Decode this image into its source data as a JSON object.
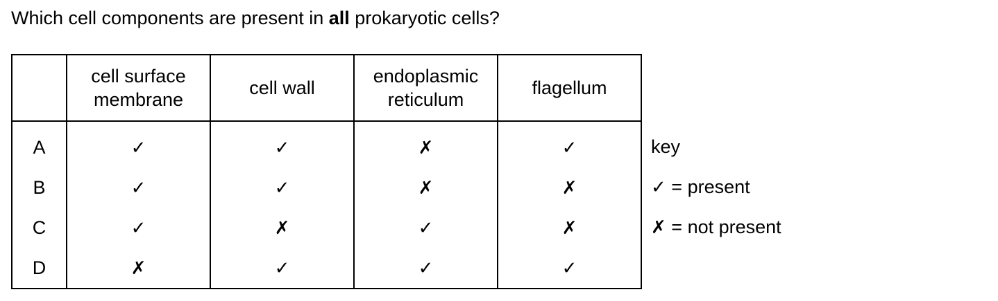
{
  "question": {
    "prefix": "Which cell components are present in ",
    "emphasis": "all",
    "suffix": " prokaryotic cells?"
  },
  "table": {
    "columns": [
      "",
      [
        "cell surface",
        "membrane"
      ],
      [
        "cell wall"
      ],
      [
        "endoplasmic",
        "reticulum"
      ],
      [
        "flagellum"
      ]
    ],
    "rows": [
      {
        "label": "A",
        "values": [
          "present",
          "present",
          "not present",
          "present"
        ]
      },
      {
        "label": "B",
        "values": [
          "present",
          "present",
          "not present",
          "not present"
        ]
      },
      {
        "label": "C",
        "values": [
          "present",
          "not present",
          "present",
          "not present"
        ]
      },
      {
        "label": "D",
        "values": [
          "not present",
          "present",
          "present",
          "present"
        ]
      }
    ]
  },
  "symbols": {
    "present": "✓",
    "not_present": "✗"
  },
  "key": {
    "title": "key",
    "present_text": " = present",
    "not_present_text": " = not present"
  }
}
